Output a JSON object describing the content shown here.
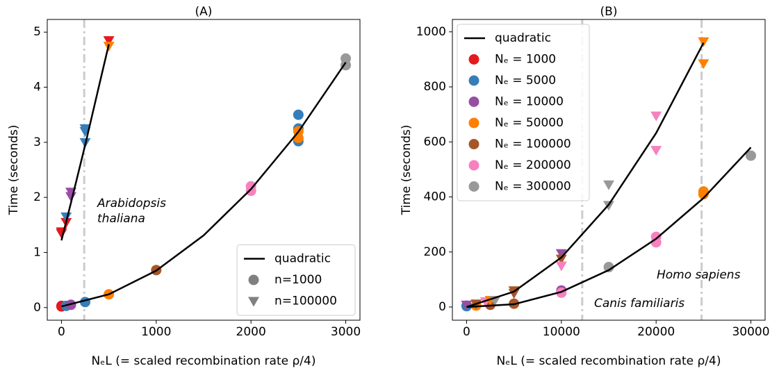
{
  "chart_data": [
    {
      "type": "scatter",
      "title": "(A)",
      "x_label": "NₑL (= scaled recombination rate ρ/4)",
      "y_label": "Time (seconds)",
      "xlim": [
        -150,
        3150
      ],
      "ylim": [
        -0.23,
        5.23
      ],
      "xticks": [
        0,
        1000,
        2000,
        3000
      ],
      "yticks": [
        0,
        1,
        2,
        3,
        4,
        5
      ],
      "vlines": [
        240
      ],
      "vline_color": "#cccccc",
      "annotations": [
        {
          "lines": [
            "Arabidopsis",
            "thaliana"
          ]
        }
      ],
      "curves": [
        {
          "color": "#000000",
          "x": [
            0,
            100,
            250,
            400,
            500
          ],
          "values": [
            1.22,
            1.9,
            2.95,
            4.05,
            4.78
          ]
        },
        {
          "color": "#000000",
          "x": [
            0,
            500,
            1000,
            1500,
            2000,
            2500,
            3000
          ],
          "values": [
            0.02,
            0.24,
            0.67,
            1.31,
            2.15,
            3.19,
            4.45
          ]
        }
      ],
      "points": {
        "x": [
          0,
          0,
          50,
          100,
          250,
          500,
          1000,
          2000,
          2000,
          2500,
          2500,
          2500,
          2500,
          2500,
          3000,
          3000,
          0,
          0,
          50,
          50,
          100,
          100,
          250,
          250,
          250,
          500,
          500
        ],
        "values": [
          0.02,
          0.03,
          0.03,
          0.05,
          0.1,
          0.24,
          0.68,
          2.12,
          2.2,
          3.5,
          3.25,
          3.02,
          3.2,
          3.08,
          4.52,
          4.4,
          1.38,
          1.35,
          1.55,
          1.65,
          2.1,
          2.02,
          3.25,
          3.2,
          3.0,
          4.85,
          4.75
        ],
        "colors": [
          "#e41a1c",
          "#e41a1c",
          "#377eb8",
          "#984ea3",
          "#377eb8",
          "#ff7f00",
          "#a65628",
          "#f781bf",
          "#f781bf",
          "#377eb8",
          "#377eb8",
          "#377eb8",
          "#ff7f00",
          "#ff7f00",
          "#999999",
          "#999999",
          "#e41a1c",
          "#e41a1c",
          "#e41a1c",
          "#377eb8",
          "#984ea3",
          "#984ea3",
          "#377eb8",
          "#377eb8",
          "#377eb8",
          "#e41a1c",
          "#ff7f00"
        ],
        "markers": [
          "o",
          "o",
          "o",
          "o",
          "o",
          "o",
          "o",
          "o",
          "o",
          "o",
          "o",
          "o",
          "o",
          "o",
          "o",
          "o",
          "v",
          "v",
          "v",
          "v",
          "v",
          "v",
          "v",
          "v",
          "v",
          "v",
          "v"
        ]
      },
      "legend": {
        "loc": "lower right",
        "entries": [
          {
            "label": "quadratic",
            "marker": "line",
            "color": "#000000"
          },
          {
            "label": "n=1000",
            "marker": "o",
            "color": "#808080"
          },
          {
            "label": "n=100000",
            "marker": "v",
            "color": "#808080"
          }
        ]
      }
    },
    {
      "type": "scatter",
      "title": "(B)",
      "x_label": "NₑL (= scaled recombination rate ρ/4)",
      "y_label": "Time (seconds)",
      "xlim": [
        -1500,
        31500
      ],
      "ylim": [
        -48,
        1045
      ],
      "xticks": [
        0,
        10000,
        20000,
        30000
      ],
      "yticks": [
        0,
        200,
        400,
        600,
        800,
        1000
      ],
      "vlines": [
        12200,
        24800
      ],
      "vline_color": "#cccccc",
      "annotations": [
        {
          "lines": [
            "Canis familiaris"
          ]
        },
        {
          "lines": [
            "Homo sapiens"
          ]
        }
      ],
      "curves": [
        {
          "color": "#000000",
          "x": [
            0,
            5000,
            10000,
            15000,
            20000,
            25000
          ],
          "values": [
            0,
            56,
            180,
            372,
            632,
            960
          ]
        },
        {
          "color": "#000000",
          "x": [
            0,
            5000,
            10000,
            15000,
            20000,
            25000,
            30000
          ],
          "values": [
            0,
            10,
            55,
            134,
            248,
            396,
            580
          ]
        }
      ],
      "points": {
        "x": [
          0,
          0,
          1000,
          2500,
          5000,
          10000,
          10000,
          15000,
          20000,
          20000,
          25000,
          25000,
          30000,
          0,
          1000,
          2000,
          2500,
          3000,
          5000,
          5000,
          10000,
          10000,
          10000,
          15000,
          15000,
          20000,
          20000,
          25000,
          25000
        ],
        "values": [
          5,
          3,
          5,
          8,
          12,
          60,
          52,
          145,
          255,
          235,
          420,
          410,
          550,
          8,
          12,
          20,
          25,
          25,
          60,
          50,
          195,
          175,
          150,
          445,
          370,
          695,
          570,
          965,
          885
        ],
        "colors": [
          "#984ea3",
          "#377eb8",
          "#ff7f00",
          "#a65628",
          "#a65628",
          "#984ea3",
          "#f781bf",
          "#999999",
          "#f781bf",
          "#f781bf",
          "#ff7f00",
          "#ff7f00",
          "#999999",
          "#984ea3",
          "#a65628",
          "#f781bf",
          "#ff7f00",
          "#999999",
          "#a65628",
          "#a65628",
          "#984ea3",
          "#a65628",
          "#f781bf",
          "#999999",
          "#999999",
          "#f781bf",
          "#f781bf",
          "#ff7f00",
          "#ff7f00"
        ],
        "markers": [
          "o",
          "o",
          "o",
          "o",
          "o",
          "o",
          "o",
          "o",
          "o",
          "o",
          "o",
          "o",
          "o",
          "v",
          "v",
          "v",
          "v",
          "v",
          "v",
          "v",
          "v",
          "v",
          "v",
          "v",
          "v",
          "v",
          "v",
          "v",
          "v"
        ]
      },
      "legend": {
        "loc": "upper left",
        "entries": [
          {
            "label": "quadratic",
            "marker": "line",
            "color": "#000000"
          },
          {
            "label": "Nₑ = 1000",
            "marker": "o",
            "color": "#e41a1c"
          },
          {
            "label": "Nₑ = 5000",
            "marker": "o",
            "color": "#377eb8"
          },
          {
            "label": "Nₑ = 10000",
            "marker": "o",
            "color": "#984ea3"
          },
          {
            "label": "Nₑ = 50000",
            "marker": "o",
            "color": "#ff7f00"
          },
          {
            "label": "Nₑ = 100000",
            "marker": "o",
            "color": "#a65628"
          },
          {
            "label": "Nₑ = 200000",
            "marker": "o",
            "color": "#f781bf"
          },
          {
            "label": "Nₑ = 300000",
            "marker": "o",
            "color": "#999999"
          }
        ]
      }
    }
  ]
}
